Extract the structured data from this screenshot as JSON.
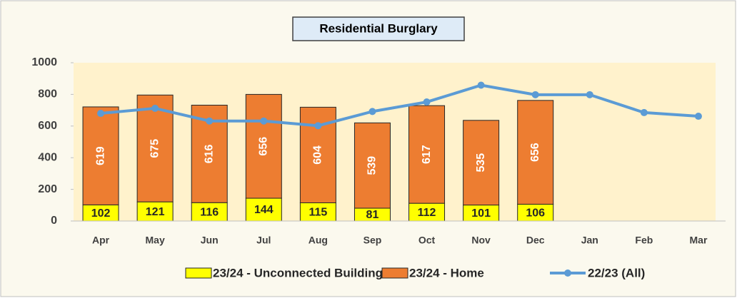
{
  "chart_data": {
    "type": "bar",
    "stacked": true,
    "title": "Residential Burglary",
    "categories": [
      "Apr",
      "May",
      "Jun",
      "Jul",
      "Aug",
      "Sep",
      "Oct",
      "Nov",
      "Dec",
      "Jan",
      "Feb",
      "Mar"
    ],
    "series": [
      {
        "name": "23/24 - Unconnected Building",
        "type": "bar",
        "color": "#ffff00",
        "values": [
          102,
          121,
          116,
          144,
          115,
          81,
          112,
          101,
          106,
          null,
          null,
          null
        ]
      },
      {
        "name": "23/24 - Home",
        "type": "bar",
        "color": "#ed7d31",
        "values": [
          619,
          675,
          616,
          656,
          604,
          539,
          617,
          535,
          656,
          null,
          null,
          null
        ]
      },
      {
        "name": "22/23 (All)",
        "type": "line",
        "color": "#5b9bd5",
        "values": [
          680,
          712,
          632,
          632,
          602,
          692,
          752,
          858,
          798,
          798,
          685,
          662
        ]
      }
    ],
    "ylim": [
      0,
      1000
    ],
    "yticks": [
      0,
      200,
      400,
      600,
      800,
      1000
    ],
    "grid": false,
    "legend": "bottom"
  }
}
